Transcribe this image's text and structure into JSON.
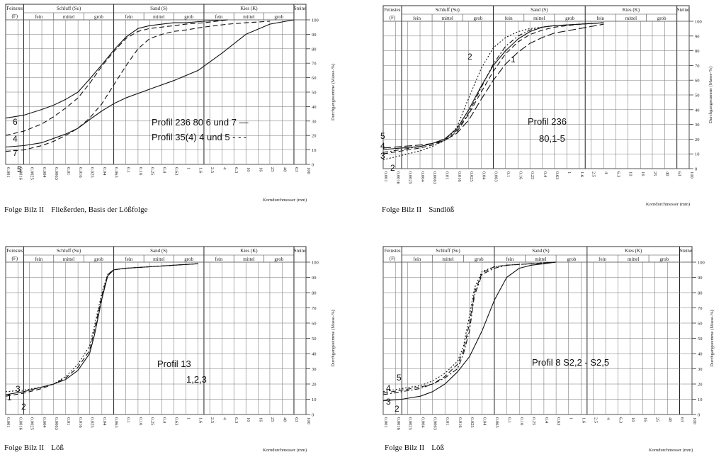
{
  "common": {
    "header_groups": [
      {
        "label": "Feinstes",
        "sub": "(F)"
      },
      {
        "label": "Schluff (Su)",
        "subs": [
          "fein",
          "mittel",
          "grob"
        ]
      },
      {
        "label": "Sand (S)",
        "subs": [
          "fein",
          "mittel",
          "grob"
        ]
      },
      {
        "label": "Kies (K)",
        "subs": [
          "fein",
          "mittel",
          "grob"
        ]
      },
      {
        "label": "Steine",
        "sub": ""
      }
    ],
    "x_ticks": [
      "0.001",
      "0.0016",
      "0.0025",
      "0.004",
      "0.0063",
      "0.01",
      "0.016",
      "0.025",
      "0.04",
      "0.063",
      "0.1",
      "0.16",
      "0.25",
      "0.4",
      "0.63",
      "1",
      "1.6",
      "2.5",
      "4",
      "6.3",
      "10",
      "16",
      "25",
      "40",
      "63",
      "100"
    ],
    "x_ticks_sandloss": [
      "0.001",
      "0.0016",
      "0.0025",
      "0.004",
      "0.0063",
      "0.01",
      "0.016",
      "0.025",
      "0.04",
      "0.063",
      "0.1",
      "0.16",
      "0.25",
      "0.4",
      "0.63",
      "1",
      "1.6",
      "2.5",
      "4",
      "6.3",
      "10",
      "16",
      "25",
      "40",
      "63",
      "100"
    ],
    "y_ticks": [
      0,
      10,
      20,
      30,
      40,
      50,
      60,
      70,
      80,
      90,
      100
    ],
    "y_label": "Durchgangssumme (Masse-%)",
    "x_label": "Korndurchmesser (mm)"
  },
  "chart_data": [
    {
      "type": "line",
      "caption": "Folge Bilz II",
      "subcaption": "Fließerden, Basis der Lößfolge",
      "annotations": [
        "Profil 236   80 6 und 7 —",
        "Profil 35(4)   4 und 5 - - -"
      ],
      "curve_labels": [
        "6",
        "4",
        "7",
        "5"
      ],
      "xlim": [
        0.001,
        100
      ],
      "ylim": [
        0,
        100
      ],
      "xscale": "log",
      "grid": true,
      "series": [
        {
          "name": "6",
          "style": "solid",
          "x": [
            0.001,
            0.002,
            0.004,
            0.0063,
            0.01,
            0.016,
            0.025,
            0.04,
            0.063,
            0.1,
            0.16,
            0.25,
            0.4,
            0.63,
            1,
            2,
            5
          ],
          "y": [
            32,
            34,
            38,
            41,
            45,
            50,
            59,
            69,
            79,
            88,
            94,
            96,
            97,
            98,
            98,
            99,
            100
          ]
        },
        {
          "name": "4",
          "style": "dashed",
          "x": [
            0.001,
            0.002,
            0.004,
            0.0063,
            0.01,
            0.016,
            0.025,
            0.04,
            0.063,
            0.1,
            0.16,
            0.25,
            0.4,
            0.63,
            1,
            2,
            5
          ],
          "y": [
            20,
            23,
            28,
            33,
            39,
            46,
            56,
            68,
            78,
            87,
            92,
            94,
            95,
            96,
            97,
            98,
            100
          ]
        },
        {
          "name": "7",
          "style": "solid",
          "x": [
            0.001,
            0.002,
            0.004,
            0.0063,
            0.01,
            0.016,
            0.025,
            0.04,
            0.063,
            0.1,
            0.25,
            0.63,
            1.6,
            4,
            10,
            25,
            63
          ],
          "y": [
            12,
            13,
            15,
            18,
            21,
            25,
            31,
            37,
            42,
            46,
            52,
            58,
            65,
            77,
            90,
            97,
            100
          ]
        },
        {
          "name": "5",
          "style": "dashed",
          "x": [
            0.001,
            0.002,
            0.004,
            0.0063,
            0.01,
            0.016,
            0.025,
            0.04,
            0.063,
            0.1,
            0.16,
            0.25,
            0.4,
            0.63,
            1,
            2,
            5,
            10,
            25
          ],
          "y": [
            9,
            10,
            13,
            16,
            20,
            25,
            32,
            42,
            55,
            68,
            80,
            87,
            90,
            92,
            93,
            95,
            97,
            98,
            99
          ]
        }
      ]
    },
    {
      "type": "line",
      "caption": "Folge Bilz II",
      "subcaption": "Sandlöß",
      "annotations": [
        "Profil 236",
        "80,1-5"
      ],
      "curve_labels": [
        "2",
        "1",
        "5",
        "4",
        "3",
        "2"
      ],
      "xlim": [
        0.001,
        100
      ],
      "ylim": [
        0,
        100
      ],
      "xscale": "log",
      "grid": true,
      "series": [
        {
          "name": "1",
          "style": "solid",
          "x": [
            0.001,
            0.002,
            0.004,
            0.0063,
            0.01,
            0.016,
            0.025,
            0.04,
            0.063,
            0.1,
            0.16,
            0.25,
            0.4,
            0.63,
            1.6,
            4
          ],
          "y": [
            13,
            14,
            15,
            17,
            20,
            27,
            40,
            56,
            70,
            80,
            88,
            93,
            96,
            97,
            98,
            99
          ]
        },
        {
          "name": "2",
          "style": "dotted",
          "x": [
            0.001,
            0.002,
            0.004,
            0.0063,
            0.01,
            0.016,
            0.025,
            0.04,
            0.063,
            0.1,
            0.16,
            0.25,
            0.4,
            0.63,
            1.6,
            4
          ],
          "y": [
            6,
            9,
            12,
            15,
            19,
            28,
            48,
            68,
            82,
            89,
            93,
            95,
            96,
            97,
            98,
            99
          ]
        },
        {
          "name": "3",
          "style": "dashed",
          "x": [
            0.001,
            0.002,
            0.004,
            0.0063,
            0.01,
            0.016,
            0.025,
            0.04,
            0.063,
            0.1,
            0.16,
            0.25,
            0.4,
            0.63,
            1.6,
            4
          ],
          "y": [
            10,
            12,
            14,
            16,
            19,
            25,
            37,
            52,
            66,
            78,
            86,
            91,
            94,
            96,
            98,
            99
          ]
        },
        {
          "name": "4",
          "style": "dashdot",
          "x": [
            0.001,
            0.002,
            0.004,
            0.0063,
            0.01,
            0.016,
            0.025,
            0.04,
            0.063,
            0.1,
            0.16,
            0.25,
            0.4,
            0.63,
            1.6,
            4
          ],
          "y": [
            11,
            13,
            15,
            17,
            20,
            26,
            38,
            55,
            71,
            83,
            90,
            94,
            96,
            97,
            98,
            99
          ]
        },
        {
          "name": "5",
          "style": "longdash",
          "x": [
            0.001,
            0.002,
            0.004,
            0.0063,
            0.01,
            0.016,
            0.025,
            0.04,
            0.063,
            0.1,
            0.16,
            0.25,
            0.4,
            0.63,
            1.6,
            4
          ],
          "y": [
            14,
            15,
            16,
            17,
            19,
            24,
            33,
            47,
            60,
            71,
            79,
            85,
            89,
            92,
            95,
            98
          ]
        }
      ]
    },
    {
      "type": "line",
      "caption": "Folge Bilz II",
      "subcaption": "Löß",
      "annotations": [
        "Profil 13",
        "1,2,3"
      ],
      "curve_labels": [
        "3",
        "1",
        "2"
      ],
      "xlim": [
        0.001,
        100
      ],
      "ylim": [
        0,
        100
      ],
      "xscale": "log",
      "grid": true,
      "series": [
        {
          "name": "1",
          "style": "solid",
          "x": [
            0.001,
            0.002,
            0.004,
            0.0063,
            0.01,
            0.016,
            0.025,
            0.03,
            0.04,
            0.05,
            0.063,
            0.1,
            0.25,
            0.63,
            1.6
          ],
          "y": [
            13,
            15,
            18,
            20,
            23,
            29,
            40,
            52,
            76,
            91,
            95,
            96,
            97,
            98,
            99
          ]
        },
        {
          "name": "2",
          "style": "dashed",
          "x": [
            0.001,
            0.002,
            0.004,
            0.0063,
            0.01,
            0.016,
            0.025,
            0.03,
            0.04,
            0.05,
            0.063,
            0.1,
            0.25,
            0.63,
            1.6
          ],
          "y": [
            12,
            14,
            17,
            20,
            24,
            31,
            42,
            55,
            78,
            92,
            95,
            96,
            97,
            98,
            99
          ]
        },
        {
          "name": "3",
          "style": "dotted",
          "x": [
            0.001,
            0.002,
            0.004,
            0.0063,
            0.01,
            0.016,
            0.025,
            0.03,
            0.04,
            0.05,
            0.063,
            0.1,
            0.25,
            0.63,
            1.6
          ],
          "y": [
            15,
            16,
            18,
            20,
            25,
            33,
            45,
            58,
            80,
            92,
            95,
            96,
            97,
            98,
            99
          ]
        }
      ]
    },
    {
      "type": "line",
      "caption": "Folge Bilz II",
      "subcaption": "Löß",
      "annotations": [
        "Profil 8  S2,2 - S2,5"
      ],
      "curve_labels": [
        "5",
        "4",
        "3",
        "2"
      ],
      "xlim": [
        0.001,
        100
      ],
      "ylim": [
        0,
        100
      ],
      "xscale": "log",
      "grid": true,
      "series": [
        {
          "name": "2",
          "style": "solid",
          "x": [
            0.001,
            0.002,
            0.004,
            0.0063,
            0.01,
            0.016,
            0.025,
            0.04,
            0.063,
            0.1,
            0.16,
            0.25,
            0.4,
            0.63
          ],
          "y": [
            9,
            10,
            12,
            15,
            20,
            28,
            38,
            55,
            75,
            90,
            96,
            98,
            99,
            100
          ]
        },
        {
          "name": "3",
          "style": "dashed",
          "x": [
            0.001,
            0.002,
            0.004,
            0.0063,
            0.01,
            0.016,
            0.02,
            0.025,
            0.03,
            0.04,
            0.063,
            0.1,
            0.25,
            0.63
          ],
          "y": [
            14,
            16,
            18,
            20,
            25,
            33,
            42,
            60,
            80,
            93,
            97,
            98,
            99,
            100
          ]
        },
        {
          "name": "4",
          "style": "dotted",
          "x": [
            0.001,
            0.002,
            0.004,
            0.0063,
            0.01,
            0.016,
            0.02,
            0.025,
            0.03,
            0.04,
            0.063,
            0.1,
            0.25,
            0.63
          ],
          "y": [
            15,
            17,
            19,
            22,
            27,
            35,
            45,
            65,
            83,
            94,
            97,
            98,
            99,
            100
          ]
        },
        {
          "name": "5",
          "style": "dashdot",
          "x": [
            0.001,
            0.002,
            0.004,
            0.0063,
            0.01,
            0.016,
            0.02,
            0.025,
            0.03,
            0.04,
            0.063,
            0.1,
            0.25,
            0.63
          ],
          "y": [
            13,
            15,
            17,
            20,
            24,
            30,
            40,
            55,
            78,
            92,
            96,
            98,
            99,
            100
          ]
        }
      ]
    }
  ]
}
